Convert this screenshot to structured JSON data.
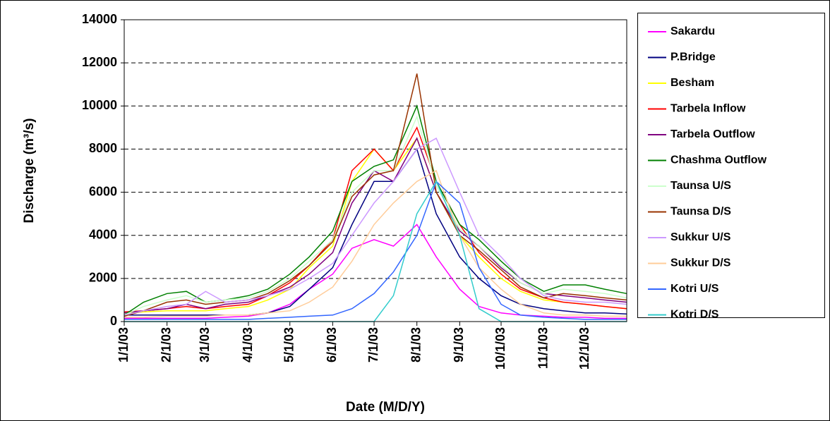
{
  "chart_data": {
    "type": "line",
    "x_label": "Date (M/D/Y)",
    "y_label": "Discharge (m³/s)",
    "x": [
      "1/1/03",
      "1/15/03",
      "2/1/03",
      "2/15/03",
      "3/1/03",
      "3/15/03",
      "4/1/03",
      "4/15/03",
      "5/1/03",
      "5/15/03",
      "6/1/03",
      "6/15/03",
      "7/1/03",
      "7/15/03",
      "8/1/03",
      "8/15/03",
      "9/1/03",
      "9/15/03",
      "10/1/03",
      "10/15/03",
      "11/1/03",
      "11/15/03",
      "12/1/03",
      "12/15/03",
      "12/31/03"
    ],
    "xlim": [
      "1/1/03",
      "12/31/03"
    ],
    "xticks": [
      "1/1/03",
      "2/1/03",
      "3/1/03",
      "4/1/03",
      "5/1/03",
      "6/1/03",
      "7/1/03",
      "8/1/03",
      "9/1/03",
      "10/1/03",
      "11/1/03",
      "12/1/03"
    ],
    "ylim": [
      0,
      14000
    ],
    "yticks": [
      0,
      2000,
      4000,
      6000,
      8000,
      10000,
      12000,
      14000
    ],
    "grid": true,
    "legend": "right",
    "series": [
      {
        "name": "Sakardu",
        "color": "#ff00ff",
        "values": [
          150,
          150,
          150,
          150,
          150,
          200,
          250,
          400,
          800,
          1500,
          2200,
          3400,
          3800,
          3500,
          4500,
          3000,
          1500,
          700,
          400,
          300,
          250,
          200,
          200,
          150,
          150
        ]
      },
      {
        "name": "P.Bridge",
        "color": "#000080",
        "values": [
          300,
          300,
          300,
          300,
          300,
          300,
          300,
          400,
          700,
          1500,
          2500,
          4500,
          6500,
          6500,
          8000,
          5000,
          3000,
          2000,
          1200,
          800,
          600,
          500,
          400,
          400,
          350
        ]
      },
      {
        "name": "Besham",
        "color": "#ffff00",
        "values": [
          400,
          450,
          500,
          500,
          500,
          600,
          700,
          1000,
          1500,
          2500,
          3500,
          6500,
          8000,
          7000,
          8500,
          6000,
          4000,
          3000,
          2000,
          1400,
          1000,
          900,
          800,
          700,
          600
        ]
      },
      {
        "name": "Tarbela Inflow",
        "color": "#ff0000",
        "values": [
          450,
          500,
          600,
          700,
          600,
          700,
          800,
          1200,
          1800,
          2600,
          3800,
          7000,
          8000,
          7000,
          9000,
          6500,
          4500,
          3200,
          2200,
          1500,
          1100,
          900,
          800,
          700,
          600
        ]
      },
      {
        "name": "Tarbela Outflow",
        "color": "#800080",
        "values": [
          400,
          500,
          600,
          800,
          600,
          800,
          900,
          1200,
          1600,
          2200,
          3200,
          5500,
          7000,
          6500,
          8500,
          6000,
          4200,
          3500,
          2500,
          1800,
          1300,
          1200,
          1100,
          1000,
          900
        ]
      },
      {
        "name": "Chashma Outflow",
        "color": "#008000",
        "values": [
          300,
          900,
          1300,
          1400,
          900,
          1000,
          1200,
          1500,
          2200,
          3000,
          4200,
          6500,
          7200,
          7500,
          10000,
          6500,
          4500,
          3800,
          2800,
          2000,
          1400,
          1700,
          1700,
          1500,
          1300
        ]
      },
      {
        "name": "Taunsa U/S",
        "color": "#ccffcc",
        "values": [
          300,
          700,
          1000,
          1200,
          900,
          1000,
          1100,
          1400,
          2000,
          2800,
          3800,
          6000,
          7000,
          7000,
          9500,
          6300,
          4300,
          3500,
          2600,
          1800,
          1300,
          1500,
          1400,
          1300,
          1100
        ]
      },
      {
        "name": "Taunsa D/S",
        "color": "#993300",
        "values": [
          250,
          500,
          900,
          1000,
          800,
          900,
          1000,
          1300,
          1900,
          2600,
          3700,
          5800,
          6800,
          7000,
          11500,
          6000,
          4000,
          3300,
          2400,
          1600,
          1100,
          1300,
          1200,
          1100,
          1000
        ]
      },
      {
        "name": "Sukkur U/S",
        "color": "#cc99ff",
        "values": [
          300,
          500,
          700,
          800,
          1400,
          900,
          1000,
          1200,
          1500,
          2000,
          2700,
          4000,
          5500,
          6500,
          8000,
          8500,
          6000,
          4000,
          3000,
          2000,
          1200,
          1000,
          900,
          900,
          800
        ]
      },
      {
        "name": "Sukkur D/S",
        "color": "#ffcc99",
        "values": [
          200,
          200,
          250,
          250,
          250,
          300,
          300,
          400,
          500,
          900,
          1600,
          2800,
          4500,
          5500,
          6500,
          7000,
          4000,
          2500,
          1500,
          800,
          400,
          300,
          300,
          250,
          250
        ]
      },
      {
        "name": "Kotri U/S",
        "color": "#3366ff",
        "values": [
          100,
          100,
          100,
          100,
          100,
          100,
          100,
          150,
          200,
          250,
          300,
          600,
          1300,
          2300,
          4000,
          6500,
          5500,
          2500,
          800,
          300,
          200,
          150,
          100,
          100,
          100
        ]
      },
      {
        "name": "Kotri D/S",
        "color": "#33cccc",
        "values": [
          0,
          0,
          0,
          0,
          0,
          0,
          0,
          0,
          0,
          0,
          0,
          0,
          0,
          1200,
          5000,
          6500,
          4000,
          600,
          0,
          0,
          0,
          0,
          0,
          0,
          0
        ]
      }
    ]
  }
}
